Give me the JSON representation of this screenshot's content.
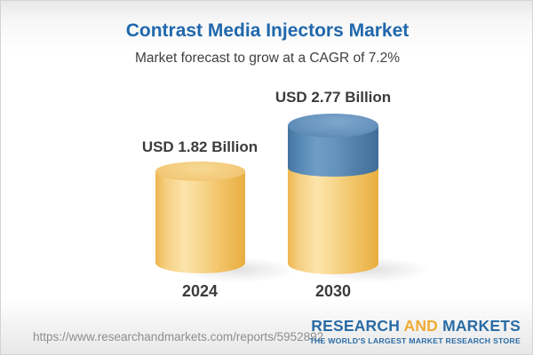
{
  "header": {
    "title": "Contrast Media Injectors Market",
    "subtitle": "Market forecast to grow at a CAGR of 7.2%"
  },
  "chart_data": {
    "type": "bar",
    "subtype": "3d-cylinder-infographic",
    "categories": [
      "2024",
      "2030"
    ],
    "values": [
      1.82,
      2.77
    ],
    "value_labels": [
      "USD 1.82 Billion",
      "USD 2.77 Billion"
    ],
    "unit": "USD Billion",
    "cagr_pct": 7.2,
    "title": "Contrast Media Injectors Market",
    "subtitle": "Market forecast to grow at a CAGR of 7.2%",
    "legend": "none",
    "axes": "none",
    "grid": false,
    "colors": {
      "bar_base_gold": "#f2c468",
      "bar_growth_segment_blue": "#5b8ab8",
      "title_blue": "#2068ac",
      "label_gray": "#3c3c3c"
    },
    "notes": "2030 bar shows base value in gold matching 2024 height plus growth delta (2.77 - 1.82) as blue top segment"
  },
  "footer": {
    "url": "https://www.researchandmarkets.com/reports/5952892",
    "logo": {
      "research": "RESEARCH",
      "and": "AND",
      "markets": "MARKETS",
      "tagline": "THE WORLD'S LARGEST MARKET RESEARCH STORE"
    }
  }
}
